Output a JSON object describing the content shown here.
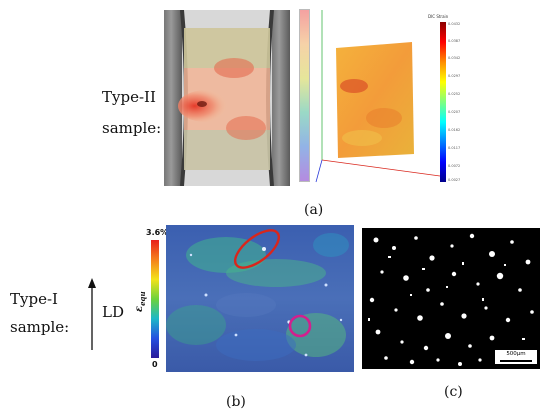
{
  "top_panel": {
    "sample_label_line1": "Type-II",
    "sample_label_line2": "sample:",
    "caption": "(a)",
    "colorbar_title": "DIC Strain",
    "colorbar_ticks": [
      "0.0432",
      "0.0387",
      "0.0342",
      "0.0297",
      "0.0252",
      "0.0207",
      "0.0162",
      "0.0117",
      "0.0072",
      "0.0027"
    ],
    "colors": {
      "hot": "#e53b2a",
      "warm": "#f3a13a",
      "cool": "#8fcf7c",
      "frame": "#cfcfcf"
    }
  },
  "bottom_left_panel": {
    "sample_label_line1": "Type-I",
    "sample_label_line2": "sample:",
    "direction_label": "LD",
    "colorbar_max": "3.6%",
    "colorbar_min": "0",
    "colorbar_symbol": "ε",
    "colorbar_symbol_sub": "equ",
    "caption": "(b)",
    "colors": {
      "ellipse": "#d9261c",
      "circle": "#d31f8e"
    }
  },
  "bottom_right_panel": {
    "scale_bar_label": "500μm",
    "caption": "(c)"
  }
}
